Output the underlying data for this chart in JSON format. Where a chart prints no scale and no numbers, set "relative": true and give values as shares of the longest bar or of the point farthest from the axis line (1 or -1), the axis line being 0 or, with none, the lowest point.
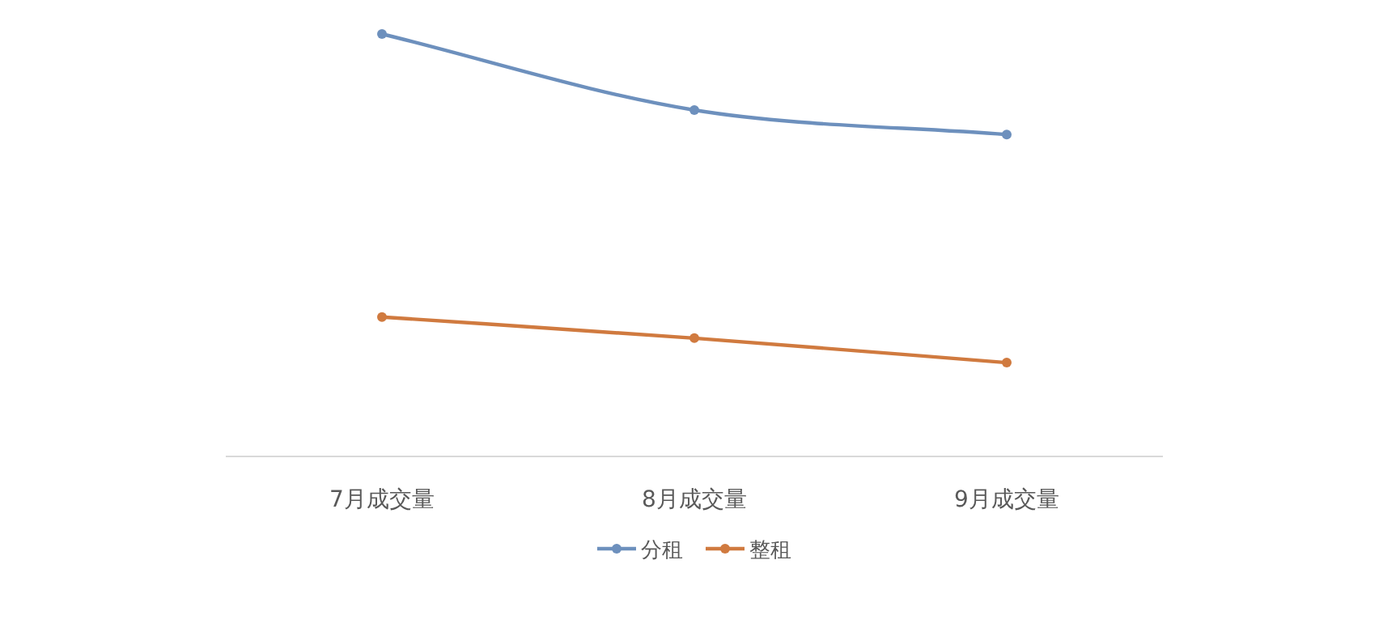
{
  "chart_data": {
    "type": "line",
    "relative": true,
    "categories": [
      "7月成交量",
      "8月成交量",
      "9月成交量"
    ],
    "series": [
      {
        "name": "分租",
        "color": "#6d90bd",
        "values": [
          1,
          0.82,
          0.762
        ]
      },
      {
        "name": "整租",
        "color": "#d07a3f",
        "values": [
          0.33,
          0.28,
          0.222
        ]
      }
    ],
    "legend": "bottom",
    "marker": "circle",
    "line_style": "solid",
    "grid": false
  }
}
